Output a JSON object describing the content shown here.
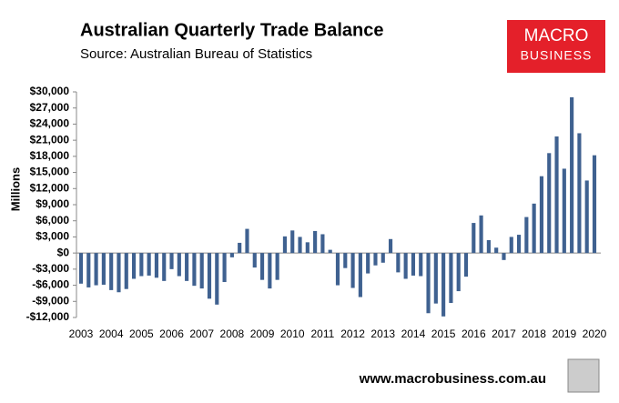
{
  "chart_data": {
    "type": "bar",
    "title": "Australian Quarterly Trade Balance",
    "subtitle": "Source: Australian Bureau of Statistics",
    "y_label": "Millions",
    "logo": [
      "MACRO",
      "BUSINESS"
    ],
    "footer": "www.macrobusiness.com.au",
    "color": "#3f6190",
    "categories": [
      "2003",
      null,
      null,
      null,
      "2004",
      null,
      null,
      null,
      "2005",
      null,
      null,
      null,
      "2006",
      null,
      null,
      null,
      "2007",
      null,
      null,
      null,
      "2008",
      null,
      null,
      null,
      "2009",
      null,
      null,
      null,
      "2010",
      null,
      null,
      null,
      "2011",
      null,
      null,
      null,
      "2012",
      null,
      null,
      null,
      "2013",
      null,
      null,
      null,
      "2014",
      null,
      null,
      null,
      "2015",
      null,
      null,
      null,
      "2016",
      null,
      null,
      null,
      "2017",
      null,
      null,
      null,
      "2018",
      null,
      null,
      null,
      "2019",
      null,
      null,
      null,
      "2020"
    ],
    "values": [
      -5700,
      -6400,
      -6000,
      -5900,
      -6900,
      -7300,
      -6700,
      -4800,
      -4300,
      -4200,
      -4600,
      -5200,
      -3000,
      -4300,
      -5200,
      -6100,
      -6600,
      -8500,
      -9600,
      -5400,
      -800,
      1900,
      4500,
      -2700,
      -5000,
      -6600,
      -5000,
      3100,
      4200,
      3000,
      2000,
      4100,
      3500,
      600,
      -6000,
      -2800,
      -6500,
      -8200,
      -3800,
      -2300,
      -1800,
      2600,
      -3600,
      -4800,
      -4200,
      -4300,
      -11200,
      -9400,
      -11800,
      -9300,
      -7100,
      -4400,
      5600,
      7000,
      2400,
      1000,
      -1300,
      3000,
      3400,
      6700,
      9200,
      14300,
      18600,
      21700,
      15700,
      29000,
      22300,
      13500,
      18200
    ],
    "ylim": [
      -12000,
      30000
    ],
    "yticks": [
      {
        "value": -12000,
        "label": "-$12,000"
      },
      {
        "value": -9000,
        "label": "-$9,000"
      },
      {
        "value": -6000,
        "label": "-$6,000"
      },
      {
        "value": -3000,
        "label": "-$3,000"
      },
      {
        "value": 0,
        "label": "$0"
      },
      {
        "value": 3000,
        "label": "$3,000"
      },
      {
        "value": 6000,
        "label": "$6,000"
      },
      {
        "value": 9000,
        "label": "$9,000"
      },
      {
        "value": 12000,
        "label": "$12,000"
      },
      {
        "value": 15000,
        "label": "$15,000"
      },
      {
        "value": 18000,
        "label": "$18,000"
      },
      {
        "value": 21000,
        "label": "$21,000"
      },
      {
        "value": 24000,
        "label": "$24,000"
      },
      {
        "value": 27000,
        "label": "$27,000"
      },
      {
        "value": 30000,
        "label": "$30,000"
      }
    ],
    "grid": false
  }
}
